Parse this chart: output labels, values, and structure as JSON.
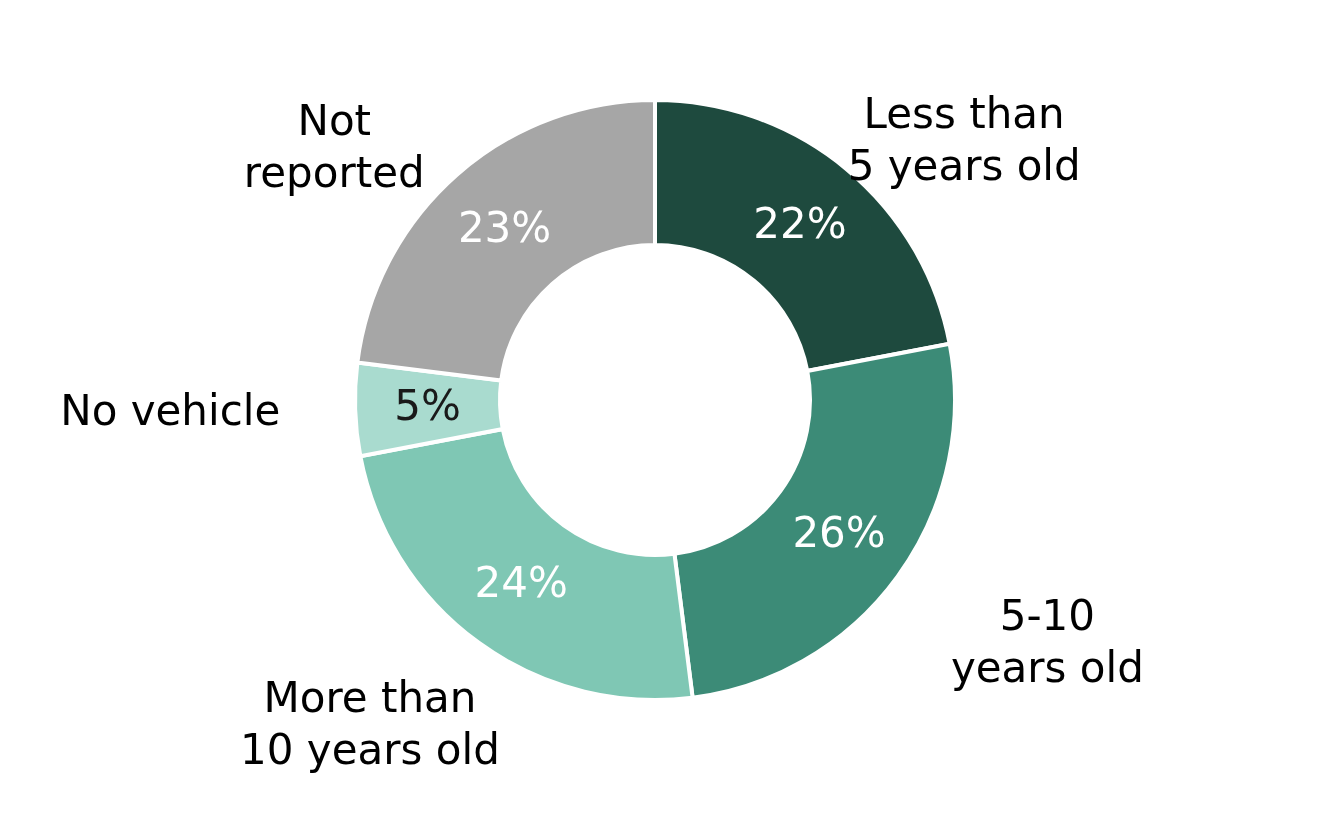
{
  "chart_data": {
    "type": "donut",
    "categories": [
      "Less than 5 years old",
      "5-10 years old",
      "More than 10 years old",
      "No vehicle",
      "Not reported"
    ],
    "values": [
      22,
      26,
      24,
      5,
      23
    ],
    "colors": [
      "#1e4a3e",
      "#3c8b77",
      "#7fc7b4",
      "#a9dbcf",
      "#a6a6a6"
    ],
    "value_labels": [
      "22%",
      "26%",
      "24%",
      "5%",
      "23%"
    ],
    "legend": false
  }
}
